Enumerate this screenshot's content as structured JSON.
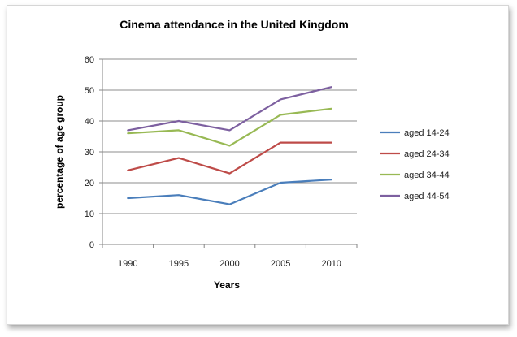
{
  "chart_data": {
    "type": "line",
    "title": "Cinema attendance in the United Kingdom",
    "xlabel": "Years",
    "ylabel": "percentage of age group",
    "categories": [
      "1990",
      "1995",
      "2000",
      "2005",
      "2010"
    ],
    "y_ticks": [
      "0",
      "10",
      "20",
      "30",
      "40",
      "50",
      "60"
    ],
    "ylim": [
      0,
      60
    ],
    "grid": "horizontal",
    "legend_position": "right",
    "series": [
      {
        "name": "aged 14-24",
        "color": "#4a7ebb",
        "values": [
          15,
          16,
          13,
          20,
          21
        ]
      },
      {
        "name": "aged 24-34",
        "color": "#be4b48",
        "values": [
          24,
          28,
          23,
          33,
          33
        ]
      },
      {
        "name": "aged 34-44",
        "color": "#98b954",
        "values": [
          36,
          37,
          32,
          42,
          44
        ]
      },
      {
        "name": "aged 44-54",
        "color": "#7d60a0",
        "values": [
          37,
          40,
          37,
          47,
          51
        ]
      }
    ]
  }
}
